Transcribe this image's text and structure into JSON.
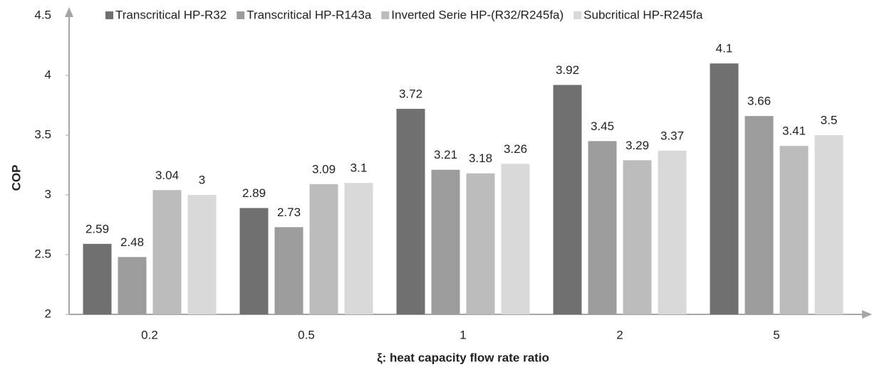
{
  "chart_data": {
    "type": "bar",
    "x_label": "ξ: heat capacity flow rate ratio",
    "y_label": "COP",
    "categories": [
      "0.2",
      "0.5",
      "1",
      "2",
      "5"
    ],
    "series": [
      {
        "name": "Transcritical HP-R32",
        "color": "#707070",
        "values": [
          2.59,
          2.89,
          3.72,
          3.92,
          4.1
        ]
      },
      {
        "name": "Transcritical HP-R143a",
        "color": "#9c9c9c",
        "values": [
          2.48,
          2.73,
          3.21,
          3.45,
          3.66
        ]
      },
      {
        "name": "Inverted Serie HP-(R32/R245fa)",
        "color": "#bcbcbc",
        "values": [
          3.04,
          3.09,
          3.18,
          3.29,
          3.41
        ]
      },
      {
        "name": "Subcritical HP-R245fa",
        "color": "#d9d9d9",
        "values": [
          3,
          3.1,
          3.26,
          3.37,
          3.5
        ]
      }
    ],
    "ylim": [
      2,
      4.5
    ],
    "yticks": [
      2,
      2.5,
      3,
      3.5,
      4,
      4.5
    ],
    "legend": "top",
    "data_labels": true
  }
}
